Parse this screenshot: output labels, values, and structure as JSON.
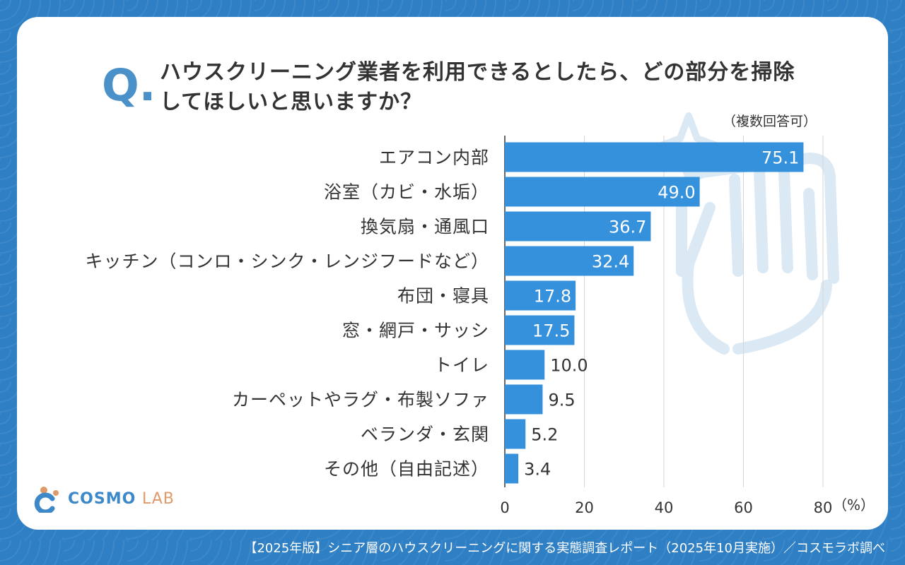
{
  "question": {
    "letter": "Q.",
    "line1": "ハウスクリーニング業者を利用できるとしたら、どの部分を掃除",
    "line2": "してほしいと思いますか？",
    "note": "（複数回答可）"
  },
  "chart_data": {
    "type": "bar",
    "orientation": "horizontal",
    "categories": [
      "エアコン内部",
      "浴室（カビ・水垢）",
      "換気扇・通風口",
      "キッチン（コンロ・シンク・レンジフードなど）",
      "布団・寝具",
      "窓・網戸・サッシ",
      "トイレ",
      "カーペットやラグ・布製ソファ",
      "ベランダ・玄関",
      "その他（自由記述）"
    ],
    "values": [
      75.1,
      49.0,
      36.7,
      32.4,
      17.8,
      17.5,
      10.0,
      9.5,
      5.2,
      3.4
    ],
    "value_labels": [
      "75.1",
      "49.0",
      "36.7",
      "32.4",
      "17.8",
      "17.5",
      "10.0",
      "9.5",
      "5.2",
      "3.4"
    ],
    "xlim": [
      0,
      80
    ],
    "xticks": [
      "0",
      "20",
      "40",
      "60",
      "80"
    ],
    "unit_label": "（%）",
    "bar_color": "#3591dc",
    "grid": true
  },
  "logo": {
    "main": "COSMO",
    "sub": "LAB"
  },
  "footer": "【2025年版】シニア層のハウスクリーニングに関する実態調査レポート（2025年10月実施）／コスモラボ調べ"
}
